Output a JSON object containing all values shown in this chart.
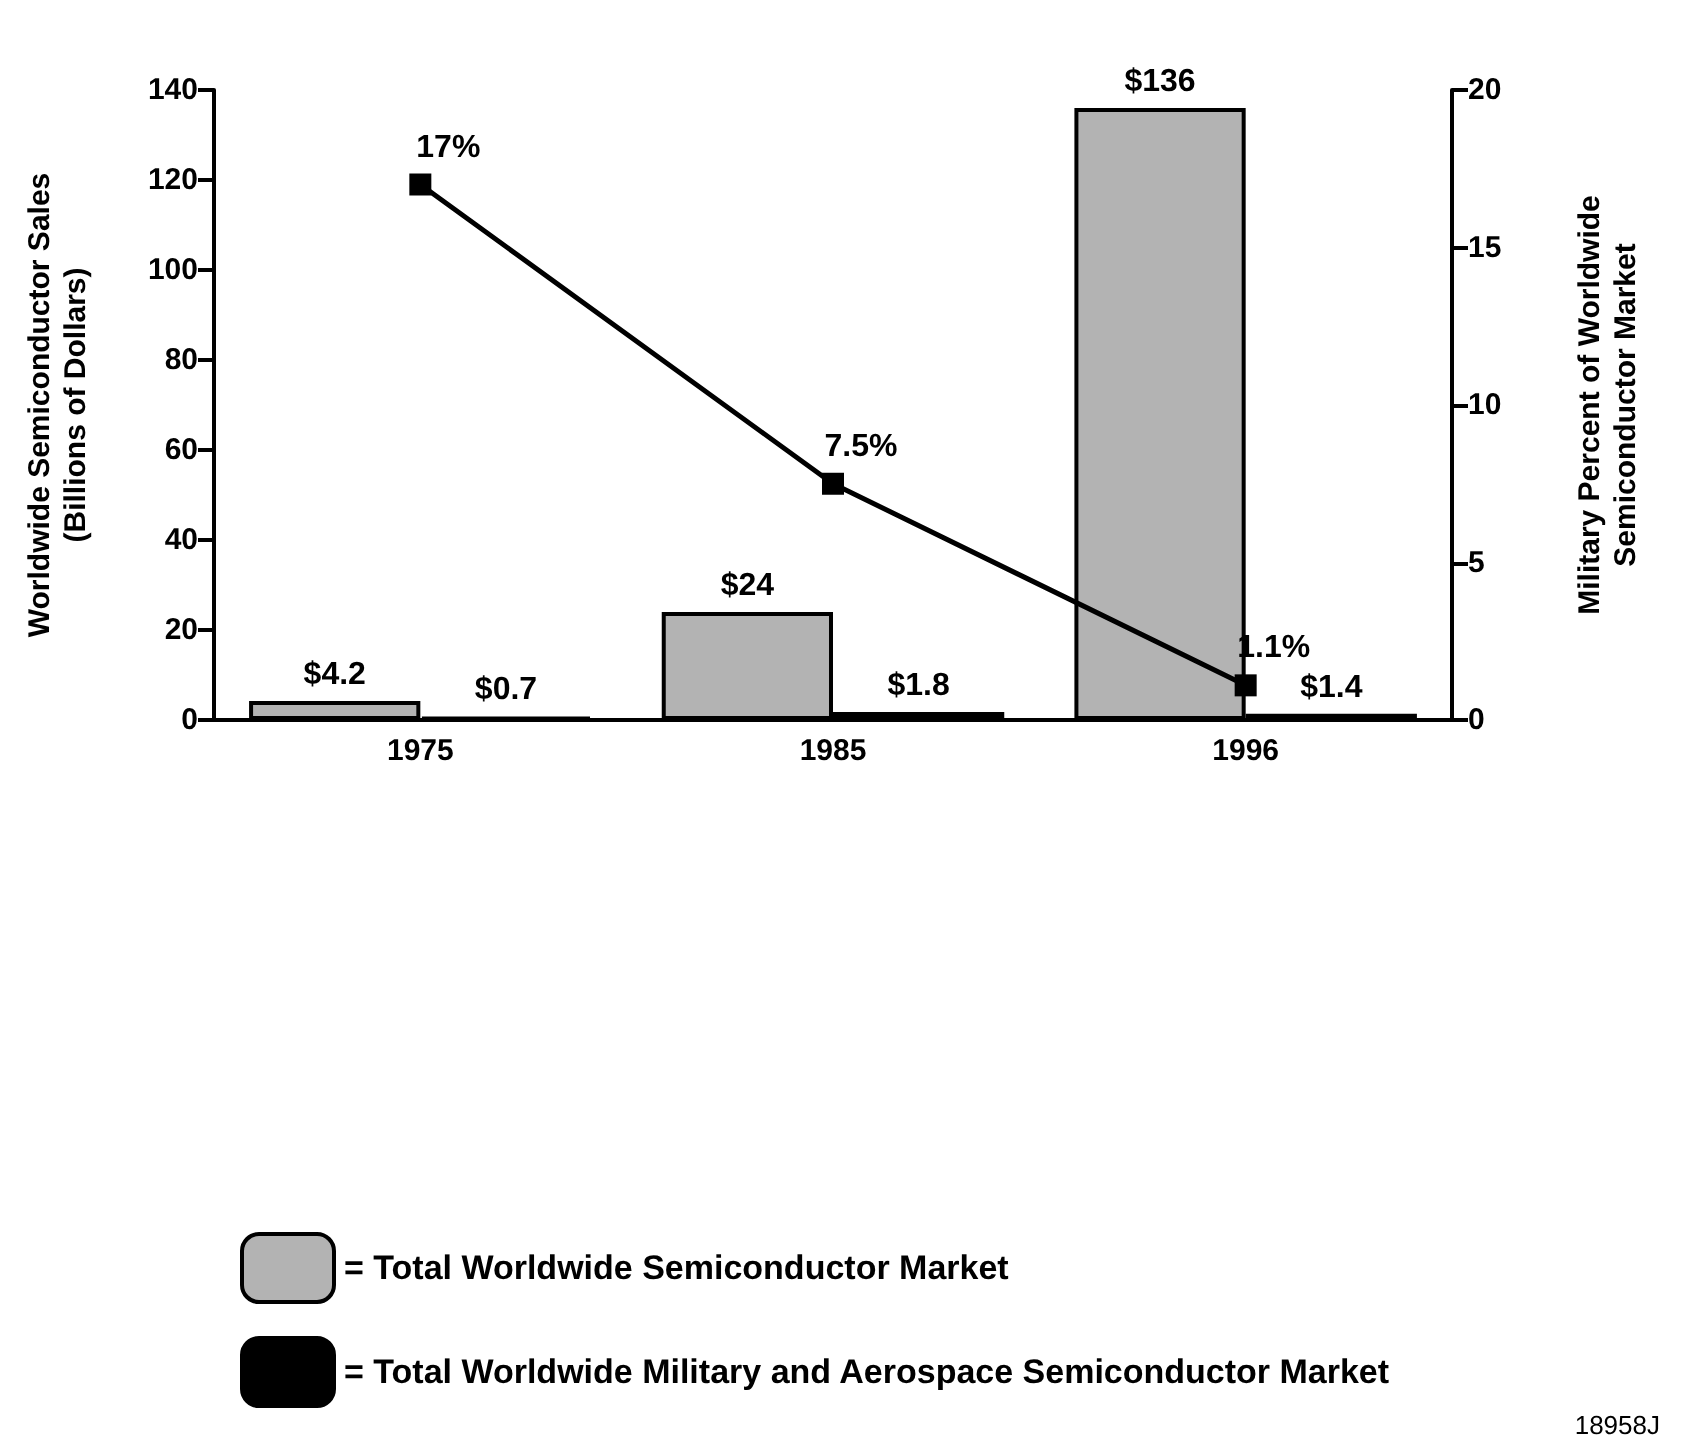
{
  "chart_data": {
    "type": "bar",
    "ylabel": "Worldwide Semiconductor Sales\n(Billions of Dollars)",
    "y2label": "Military Percent of Worldwide\nSemiconductor Market",
    "categories": [
      "1975",
      "1985",
      "1996"
    ],
    "series": [
      {
        "name": "= Total Worldwide Semiconductor Market",
        "color": "#b3b3b3",
        "values": [
          4.2,
          24,
          136
        ],
        "value_labels": [
          "$4.2",
          "$24",
          "$136"
        ]
      },
      {
        "name": "= Total Worldwide Military and Aerospace Semiconductor Market",
        "color": "#000000",
        "values": [
          0.7,
          1.8,
          1.4
        ],
        "value_labels": [
          "$0.7",
          "$1.8",
          "$1.4"
        ]
      },
      {
        "type": "line",
        "axis": "y2",
        "color": "#000000",
        "marker": "square",
        "values": [
          17,
          7.5,
          1.1
        ],
        "value_labels": [
          "17%",
          "7.5%",
          "1.1%"
        ]
      }
    ],
    "ylim": [
      0,
      140
    ],
    "yticks": [
      0,
      20,
      40,
      60,
      80,
      100,
      120,
      140
    ],
    "y2lim": [
      0,
      20
    ],
    "y2ticks": [
      0,
      5,
      10,
      15,
      20
    ],
    "grid": false,
    "legend": "bottom",
    "annotations": [
      "18958J"
    ]
  }
}
